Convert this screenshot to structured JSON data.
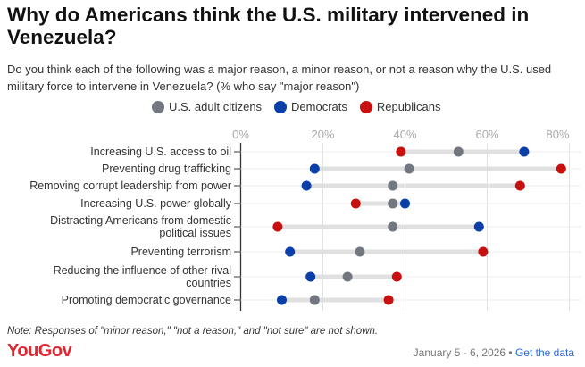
{
  "chart_data": {
    "type": "dot",
    "title": "Why do Americans think the U.S. military intervened in Venezuela?",
    "subtitle": "Do you think each of the following was a major reason, a minor reason, or not a reason why the U.S. used military force to intervene in Venezuela? (% who say \"major reason\")",
    "xlim": [
      0,
      80
    ],
    "ticks": [
      0,
      20,
      40,
      60,
      80
    ],
    "tick_labels": [
      "0%",
      "20%",
      "40%",
      "60%",
      "80%"
    ],
    "legend": "top",
    "series": [
      {
        "name": "U.S. adult citizens",
        "color": "#737780",
        "values": [
          53,
          41,
          37,
          37,
          37,
          29,
          26,
          18
        ]
      },
      {
        "name": "Democrats",
        "color": "#0a3ea8",
        "values": [
          69,
          18,
          16,
          40,
          58,
          12,
          17,
          10
        ]
      },
      {
        "name": "Republicans",
        "color": "#c8100f",
        "values": [
          39,
          78,
          68,
          28,
          9,
          59,
          38,
          36
        ]
      }
    ],
    "categories": [
      [
        "Increasing U.S. access to oil"
      ],
      [
        "Preventing drug trafficking"
      ],
      [
        "Removing corrupt leadership from power"
      ],
      [
        "Increasing U.S. power globally"
      ],
      [
        "Distracting Americans from domestic",
        "political issues"
      ],
      [
        "Preventing terrorism"
      ],
      [
        "Reducing the influence of other rival",
        "countries"
      ],
      [
        "Promoting democratic governance"
      ]
    ]
  },
  "note": "Note: Responses of \"minor reason,\" \"not a reason,\" and \"not sure\" are not shown.",
  "logo": "YouGov",
  "date": "January 5 - 6, 2026",
  "sep": " • ",
  "link": "Get the data"
}
